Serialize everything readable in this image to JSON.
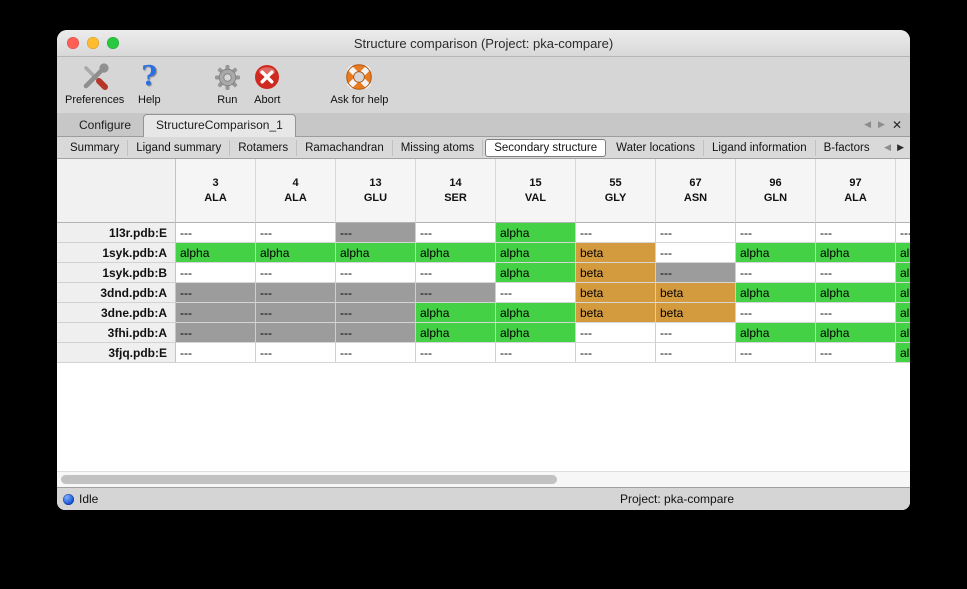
{
  "window": {
    "title": "Structure comparison (Project: pka-compare)"
  },
  "toolbar": {
    "items": [
      {
        "id": "preferences",
        "label": "Preferences"
      },
      {
        "id": "help",
        "label": "Help"
      },
      {
        "id": "run",
        "label": "Run",
        "gap_before": true
      },
      {
        "id": "abort",
        "label": "Abort"
      },
      {
        "id": "ask-for-help",
        "label": "Ask for help",
        "gap_before": true
      }
    ]
  },
  "icons": {
    "help_glyph": "?",
    "left_arrow": "◀",
    "right_arrow": "▶",
    "close": "✕"
  },
  "doc_tabs": [
    {
      "label": "Configure",
      "active": false
    },
    {
      "label": "StructureComparison_1",
      "active": true
    }
  ],
  "view_tabs": {
    "tabs": [
      "Summary",
      "Ligand summary",
      "Rotamers",
      "Ramachandran",
      "Missing atoms",
      "Secondary structure",
      "Water locations",
      "Ligand information",
      "B-factors"
    ],
    "selected": "Secondary structure"
  },
  "table": {
    "columns": [
      {
        "num": "3",
        "res": "ALA"
      },
      {
        "num": "4",
        "res": "ALA"
      },
      {
        "num": "13",
        "res": "GLU"
      },
      {
        "num": "14",
        "res": "SER"
      },
      {
        "num": "15",
        "res": "VAL"
      },
      {
        "num": "55",
        "res": "GLY"
      },
      {
        "num": "67",
        "res": "ASN"
      },
      {
        "num": "96",
        "res": "GLN"
      },
      {
        "num": "97",
        "res": "ALA"
      },
      {
        "num": "",
        "res": ""
      }
    ],
    "rows": [
      {
        "label": "1l3r.pdb:E",
        "cells": [
          [
            "---",
            "plain"
          ],
          [
            "---",
            "plain"
          ],
          [
            "---",
            "gray"
          ],
          [
            "---",
            "plain"
          ],
          [
            "alpha",
            "alpha"
          ],
          [
            "---",
            "plain"
          ],
          [
            "---",
            "plain"
          ],
          [
            "---",
            "plain"
          ],
          [
            "---",
            "plain"
          ],
          [
            "---",
            "plain"
          ]
        ]
      },
      {
        "label": "1syk.pdb:A",
        "cells": [
          [
            "alpha",
            "alpha"
          ],
          [
            "alpha",
            "alpha"
          ],
          [
            "alpha",
            "alpha"
          ],
          [
            "alpha",
            "alpha"
          ],
          [
            "alpha",
            "alpha"
          ],
          [
            "beta",
            "beta"
          ],
          [
            "---",
            "plain"
          ],
          [
            "alpha",
            "alpha"
          ],
          [
            "alpha",
            "alpha"
          ],
          [
            "alpha",
            "alpha"
          ]
        ]
      },
      {
        "label": "1syk.pdb:B",
        "cells": [
          [
            "---",
            "plain"
          ],
          [
            "---",
            "plain"
          ],
          [
            "---",
            "plain"
          ],
          [
            "---",
            "plain"
          ],
          [
            "alpha",
            "alpha"
          ],
          [
            "beta",
            "beta"
          ],
          [
            "---",
            "gray"
          ],
          [
            "---",
            "plain"
          ],
          [
            "---",
            "plain"
          ],
          [
            "alpha",
            "alpha"
          ]
        ]
      },
      {
        "label": "3dnd.pdb:A",
        "cells": [
          [
            "---",
            "gray"
          ],
          [
            "---",
            "gray"
          ],
          [
            "---",
            "gray"
          ],
          [
            "---",
            "gray"
          ],
          [
            "---",
            "plain"
          ],
          [
            "beta",
            "beta"
          ],
          [
            "beta",
            "beta"
          ],
          [
            "alpha",
            "alpha"
          ],
          [
            "alpha",
            "alpha"
          ],
          [
            "alpha",
            "alpha"
          ]
        ]
      },
      {
        "label": "3dne.pdb:A",
        "cells": [
          [
            "---",
            "gray"
          ],
          [
            "---",
            "gray"
          ],
          [
            "---",
            "gray"
          ],
          [
            "alpha",
            "alpha"
          ],
          [
            "alpha",
            "alpha"
          ],
          [
            "beta",
            "beta"
          ],
          [
            "beta",
            "beta"
          ],
          [
            "---",
            "plain"
          ],
          [
            "---",
            "plain"
          ],
          [
            "alpha",
            "alpha"
          ]
        ]
      },
      {
        "label": "3fhi.pdb:A",
        "cells": [
          [
            "---",
            "gray"
          ],
          [
            "---",
            "gray"
          ],
          [
            "---",
            "gray"
          ],
          [
            "alpha",
            "alpha"
          ],
          [
            "alpha",
            "alpha"
          ],
          [
            "---",
            "plain"
          ],
          [
            "---",
            "plain"
          ],
          [
            "alpha",
            "alpha"
          ],
          [
            "alpha",
            "alpha"
          ],
          [
            "alpha",
            "alpha"
          ]
        ]
      },
      {
        "label": "3fjq.pdb:E",
        "cells": [
          [
            "---",
            "plain"
          ],
          [
            "---",
            "plain"
          ],
          [
            "---",
            "plain"
          ],
          [
            "---",
            "plain"
          ],
          [
            "---",
            "plain"
          ],
          [
            "---",
            "plain"
          ],
          [
            "---",
            "plain"
          ],
          [
            "---",
            "plain"
          ],
          [
            "---",
            "plain"
          ],
          [
            "alpha",
            "alpha"
          ]
        ]
      }
    ]
  },
  "colors": {
    "alpha": "#45d145",
    "beta": "#d49a3e",
    "gray": "#9c9c9c"
  },
  "statusbar": {
    "status": "Idle",
    "project": "Project: pka-compare"
  }
}
